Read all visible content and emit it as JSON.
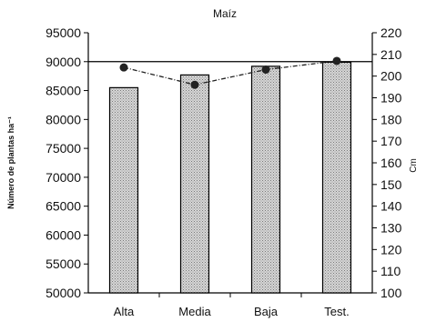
{
  "chart_data": {
    "type": "bar",
    "title": "Maíz",
    "categories": [
      "Alta",
      "Media",
      "Baja",
      "Test."
    ],
    "ylabel": "Número de plantas ha⁻¹",
    "ylabel2": "Cm",
    "ylim": [
      50000,
      95000
    ],
    "ylim2": [
      100,
      220
    ],
    "yticks": [
      "50000",
      "55000",
      "60000",
      "65000",
      "70000",
      "75000",
      "80000",
      "85000",
      "90000",
      "95000"
    ],
    "yticks2": [
      "100",
      "110",
      "120",
      "130",
      "140",
      "150",
      "160",
      "170",
      "180",
      "190",
      "200",
      "210",
      "220"
    ],
    "grid": "horizontal at 90000",
    "series": [
      {
        "type": "bar",
        "axis": "left",
        "values": [
          85500,
          87700,
          89200,
          89900
        ]
      },
      {
        "type": "line",
        "axis": "right",
        "values": [
          204,
          196,
          203,
          207
        ]
      }
    ],
    "colors": {
      "bar_fill": "#d6d6d6",
      "bar_dots": "#7a7a7a",
      "line": "#222222",
      "axis": "#000000"
    }
  }
}
